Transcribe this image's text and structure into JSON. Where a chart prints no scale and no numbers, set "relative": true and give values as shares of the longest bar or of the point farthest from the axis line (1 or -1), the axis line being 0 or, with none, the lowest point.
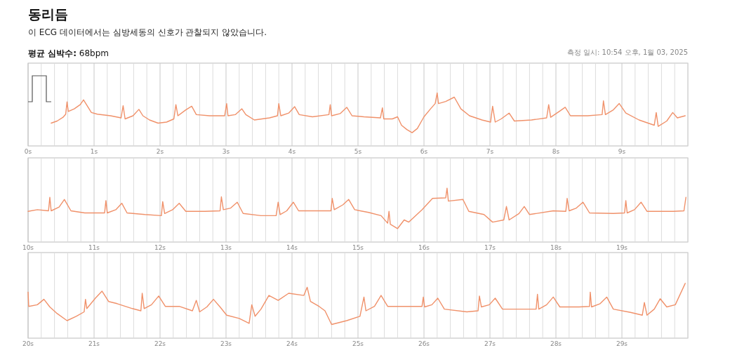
{
  "chart_data": [
    {
      "type": "line",
      "title": "동리듬",
      "subtitle": "이 ECG 데이터에서는 심방세동의 신호가 관찰되지 않았습니다.",
      "annotations": [
        "평균 심박수: 68bpm",
        "측정 일시: 10:54 오후, 1월 03, 2025"
      ],
      "relative": true,
      "grid": "x",
      "xlim": [
        0,
        10
      ],
      "xticks": [
        {
          "value": 0,
          "label": "0s"
        },
        {
          "value": 0.2,
          "label": null
        },
        {
          "value": 0.4,
          "label": null
        },
        {
          "value": 0.6,
          "label": null
        },
        {
          "value": 0.8,
          "label": null
        },
        {
          "value": 1,
          "label": "1s"
        },
        {
          "value": 1.2,
          "label": null
        },
        {
          "value": 1.4,
          "label": null
        },
        {
          "value": 1.6,
          "label": null
        },
        {
          "value": 1.8,
          "label": null
        },
        {
          "value": 2,
          "label": "2s"
        },
        {
          "value": 2.2,
          "label": null
        },
        {
          "value": 2.4,
          "label": null
        },
        {
          "value": 2.6,
          "label": null
        },
        {
          "value": 2.8,
          "label": null
        },
        {
          "value": 3,
          "label": "3s"
        },
        {
          "value": 3.2,
          "label": null
        },
        {
          "value": 3.4,
          "label": null
        },
        {
          "value": 3.6,
          "label": null
        },
        {
          "value": 3.8,
          "label": null
        },
        {
          "value": 4,
          "label": "4s"
        },
        {
          "value": 4.2,
          "label": null
        },
        {
          "value": 4.4,
          "label": null
        },
        {
          "value": 4.6,
          "label": null
        },
        {
          "value": 4.8,
          "label": null
        },
        {
          "value": 5,
          "label": "5s"
        },
        {
          "value": 5.2,
          "label": null
        },
        {
          "value": 5.4,
          "label": null
        },
        {
          "value": 5.6,
          "label": null
        },
        {
          "value": 5.8,
          "label": null
        },
        {
          "value": 6,
          "label": "6s"
        },
        {
          "value": 6.2,
          "label": null
        },
        {
          "value": 6.4,
          "label": null
        },
        {
          "value": 6.6,
          "label": null
        },
        {
          "value": 6.8,
          "label": null
        },
        {
          "value": 7,
          "label": "7s"
        },
        {
          "value": 7.2,
          "label": null
        },
        {
          "value": 7.4,
          "label": null
        },
        {
          "value": 7.6,
          "label": null
        },
        {
          "value": 7.8,
          "label": null
        },
        {
          "value": 8,
          "label": "8s"
        },
        {
          "value": 8.2,
          "label": null
        },
        {
          "value": 8.4,
          "label": null
        },
        {
          "value": 8.6,
          "label": null
        },
        {
          "value": 8.8,
          "label": null
        },
        {
          "value": 9,
          "label": "9s"
        },
        {
          "value": 9.2,
          "label": null
        },
        {
          "value": 9.4,
          "label": null
        },
        {
          "value": 9.6,
          "label": null
        },
        {
          "value": 9.8,
          "label": null
        },
        {
          "value": 10,
          "label": null
        }
      ],
      "x": [
        0.35,
        0.44,
        0.53,
        0.57,
        0.59,
        0.61,
        0.7,
        0.79,
        0.84,
        0.87,
        0.96,
        1.05,
        1.25,
        1.41,
        1.44,
        1.47,
        1.59,
        1.68,
        1.74,
        1.84,
        1.97,
        2.1,
        2.21,
        2.24,
        2.27,
        2.39,
        2.48,
        2.55,
        2.75,
        2.98,
        3.01,
        3.03,
        3.14,
        3.24,
        3.3,
        3.43,
        3.66,
        3.78,
        3.8,
        3.83,
        3.95,
        4.04,
        4.11,
        4.31,
        4.56,
        4.58,
        4.6,
        4.73,
        4.83,
        4.91,
        5.09,
        5.34,
        5.37,
        5.39,
        5.52,
        5.6,
        5.66,
        5.74,
        5.82,
        5.9,
        6.0,
        6.1,
        6.17,
        6.2,
        6.22,
        6.33,
        6.46,
        6.56,
        6.69,
        6.88,
        7.01,
        7.04,
        7.08,
        7.17,
        7.29,
        7.37,
        7.63,
        7.86,
        7.89,
        7.92,
        8.05,
        8.14,
        8.22,
        8.48,
        8.7,
        8.72,
        8.75,
        8.87,
        8.96,
        9.06,
        9.26,
        9.49,
        9.52,
        9.55,
        9.68,
        9.77,
        9.84,
        9.96
      ],
      "series": [
        {
          "color": "#f0916a",
          "values": [
            0.43,
            0.47,
            0.54,
            0.6,
            0.83,
            0.65,
            0.7,
            0.78,
            0.87,
            0.81,
            0.63,
            0.6,
            0.57,
            0.53,
            0.76,
            0.51,
            0.57,
            0.69,
            0.57,
            0.49,
            0.43,
            0.45,
            0.51,
            0.78,
            0.57,
            0.68,
            0.75,
            0.59,
            0.57,
            0.57,
            0.8,
            0.57,
            0.59,
            0.7,
            0.59,
            0.49,
            0.53,
            0.57,
            0.8,
            0.57,
            0.62,
            0.74,
            0.59,
            0.55,
            0.59,
            0.78,
            0.57,
            0.61,
            0.73,
            0.57,
            0.55,
            0.53,
            0.72,
            0.51,
            0.51,
            0.55,
            0.39,
            0.31,
            0.25,
            0.33,
            0.55,
            0.7,
            0.8,
            1,
            0.8,
            0.84,
            0.92,
            0.7,
            0.57,
            0.49,
            0.45,
            0.75,
            0.45,
            0.51,
            0.62,
            0.47,
            0.49,
            0.53,
            0.78,
            0.54,
            0.65,
            0.73,
            0.57,
            0.57,
            0.59,
            0.85,
            0.59,
            0.68,
            0.8,
            0.62,
            0.49,
            0.39,
            0.63,
            0.37,
            0.47,
            0.63,
            0.53,
            0.57
          ]
        }
      ]
    },
    {
      "type": "line",
      "relative": true,
      "grid": "x",
      "xlim": [
        10,
        20
      ],
      "xticks": [
        {
          "value": 10,
          "label": "10s"
        },
        {
          "value": 10.2,
          "label": null
        },
        {
          "value": 10.4,
          "label": null
        },
        {
          "value": 10.6,
          "label": null
        },
        {
          "value": 10.8,
          "label": null
        },
        {
          "value": 11,
          "label": "11s"
        },
        {
          "value": 11.2,
          "label": null
        },
        {
          "value": 11.4,
          "label": null
        },
        {
          "value": 11.6,
          "label": null
        },
        {
          "value": 11.8,
          "label": null
        },
        {
          "value": 12,
          "label": "12s"
        },
        {
          "value": 12.2,
          "label": null
        },
        {
          "value": 12.4,
          "label": null
        },
        {
          "value": 12.6,
          "label": null
        },
        {
          "value": 12.8,
          "label": null
        },
        {
          "value": 13,
          "label": "13s"
        },
        {
          "value": 13.2,
          "label": null
        },
        {
          "value": 13.4,
          "label": null
        },
        {
          "value": 13.6,
          "label": null
        },
        {
          "value": 13.8,
          "label": null
        },
        {
          "value": 14,
          "label": "14s"
        },
        {
          "value": 14.2,
          "label": null
        },
        {
          "value": 14.4,
          "label": null
        },
        {
          "value": 14.6,
          "label": null
        },
        {
          "value": 14.8,
          "label": null
        },
        {
          "value": 15,
          "label": "15s"
        },
        {
          "value": 15.2,
          "label": null
        },
        {
          "value": 15.4,
          "label": null
        },
        {
          "value": 15.6,
          "label": null
        },
        {
          "value": 15.8,
          "label": null
        },
        {
          "value": 16,
          "label": "16s"
        },
        {
          "value": 16.2,
          "label": null
        },
        {
          "value": 16.4,
          "label": null
        },
        {
          "value": 16.6,
          "label": null
        },
        {
          "value": 16.8,
          "label": null
        },
        {
          "value": 17,
          "label": "17s"
        },
        {
          "value": 17.2,
          "label": null
        },
        {
          "value": 17.4,
          "label": null
        },
        {
          "value": 17.6,
          "label": null
        },
        {
          "value": 17.8,
          "label": null
        },
        {
          "value": 18,
          "label": "18s"
        },
        {
          "value": 18.2,
          "label": null
        },
        {
          "value": 18.4,
          "label": null
        },
        {
          "value": 18.6,
          "label": null
        },
        {
          "value": 18.8,
          "label": null
        },
        {
          "value": 19,
          "label": "19s"
        },
        {
          "value": 19.2,
          "label": null
        },
        {
          "value": 19.4,
          "label": null
        },
        {
          "value": 19.6,
          "label": null
        },
        {
          "value": 19.8,
          "label": null
        },
        {
          "value": 20,
          "label": null
        }
      ],
      "x": [
        10.0,
        10.14,
        10.31,
        10.33,
        10.35,
        10.47,
        10.55,
        10.65,
        10.86,
        11.16,
        11.18,
        11.2,
        11.33,
        11.42,
        11.5,
        11.77,
        12.02,
        12.04,
        12.07,
        12.19,
        12.29,
        12.39,
        12.68,
        12.91,
        12.93,
        12.96,
        13.07,
        13.17,
        13.26,
        13.53,
        13.76,
        13.79,
        13.82,
        13.92,
        14.02,
        14.1,
        14.44,
        14.59,
        14.61,
        14.64,
        14.77,
        14.86,
        14.95,
        15.16,
        15.35,
        15.45,
        15.47,
        15.49,
        15.6,
        15.7,
        15.77,
        15.97,
        16.13,
        16.33,
        16.35,
        16.37,
        16.59,
        16.68,
        16.91,
        17.04,
        17.21,
        17.25,
        17.29,
        17.44,
        17.52,
        17.6,
        17.96,
        18.15,
        18.17,
        18.2,
        18.31,
        18.41,
        18.51,
        18.87,
        19.04,
        19.06,
        19.08,
        19.19,
        19.29,
        19.38,
        19.78,
        19.94,
        19.97
      ],
      "series": [
        {
          "color": "#f0916a",
          "values": [
            0.57,
            0.6,
            0.58,
            0.83,
            0.58,
            0.65,
            0.79,
            0.58,
            0.54,
            0.54,
            0.77,
            0.54,
            0.6,
            0.72,
            0.54,
            0.51,
            0.49,
            0.75,
            0.53,
            0.6,
            0.72,
            0.57,
            0.57,
            0.58,
            0.84,
            0.6,
            0.63,
            0.74,
            0.53,
            0.49,
            0.49,
            0.74,
            0.51,
            0.58,
            0.74,
            0.58,
            0.58,
            0.58,
            0.81,
            0.6,
            0.69,
            0.79,
            0.6,
            0.55,
            0.49,
            0.35,
            0.57,
            0.33,
            0.25,
            0.41,
            0.37,
            0.6,
            0.81,
            0.82,
            1,
            0.76,
            0.79,
            0.57,
            0.51,
            0.37,
            0.41,
            0.66,
            0.41,
            0.53,
            0.66,
            0.51,
            0.58,
            0.57,
            0.81,
            0.58,
            0.63,
            0.74,
            0.54,
            0.53,
            0.54,
            0.77,
            0.54,
            0.6,
            0.74,
            0.57,
            0.57,
            0.58,
            0.83
          ]
        }
      ]
    },
    {
      "type": "line",
      "relative": true,
      "grid": "x",
      "xlim": [
        20,
        30
      ],
      "xticks": [
        {
          "value": 20,
          "label": "20s"
        },
        {
          "value": 20.2,
          "label": null
        },
        {
          "value": 20.4,
          "label": null
        },
        {
          "value": 20.6,
          "label": null
        },
        {
          "value": 20.8,
          "label": null
        },
        {
          "value": 21,
          "label": "21s"
        },
        {
          "value": 21.2,
          "label": null
        },
        {
          "value": 21.4,
          "label": null
        },
        {
          "value": 21.6,
          "label": null
        },
        {
          "value": 21.8,
          "label": null
        },
        {
          "value": 22,
          "label": "22s"
        },
        {
          "value": 22.2,
          "label": null
        },
        {
          "value": 22.4,
          "label": null
        },
        {
          "value": 22.6,
          "label": null
        },
        {
          "value": 22.8,
          "label": null
        },
        {
          "value": 23,
          "label": "23s"
        },
        {
          "value": 23.2,
          "label": null
        },
        {
          "value": 23.4,
          "label": null
        },
        {
          "value": 23.6,
          "label": null
        },
        {
          "value": 23.8,
          "label": null
        },
        {
          "value": 24,
          "label": "24s"
        },
        {
          "value": 24.2,
          "label": null
        },
        {
          "value": 24.4,
          "label": null
        },
        {
          "value": 24.6,
          "label": null
        },
        {
          "value": 24.8,
          "label": null
        },
        {
          "value": 25,
          "label": "25s"
        },
        {
          "value": 25.2,
          "label": null
        },
        {
          "value": 25.4,
          "label": null
        },
        {
          "value": 25.6,
          "label": null
        },
        {
          "value": 25.8,
          "label": null
        },
        {
          "value": 26,
          "label": "26s"
        },
        {
          "value": 26.2,
          "label": null
        },
        {
          "value": 26.4,
          "label": null
        },
        {
          "value": 26.6,
          "label": null
        },
        {
          "value": 26.8,
          "label": null
        },
        {
          "value": 27,
          "label": "27s"
        },
        {
          "value": 27.2,
          "label": null
        },
        {
          "value": 27.4,
          "label": null
        },
        {
          "value": 27.6,
          "label": null
        },
        {
          "value": 27.8,
          "label": null
        },
        {
          "value": 28,
          "label": "28s"
        },
        {
          "value": 28.2,
          "label": null
        },
        {
          "value": 28.4,
          "label": null
        },
        {
          "value": 28.6,
          "label": null
        },
        {
          "value": 28.8,
          "label": null
        },
        {
          "value": 29,
          "label": "29s"
        },
        {
          "value": 29.2,
          "label": null
        },
        {
          "value": 29.4,
          "label": null
        },
        {
          "value": 29.6,
          "label": null
        },
        {
          "value": 29.8,
          "label": null
        },
        {
          "value": 30,
          "label": null
        }
      ],
      "x": [
        20.0,
        20.01,
        20.14,
        20.24,
        20.33,
        20.44,
        20.59,
        20.73,
        20.85,
        20.87,
        20.89,
        21.02,
        21.12,
        21.22,
        21.35,
        21.58,
        21.71,
        21.73,
        21.76,
        21.87,
        21.98,
        22.08,
        22.29,
        22.49,
        22.55,
        22.6,
        22.71,
        22.81,
        22.91,
        23.01,
        23.2,
        23.35,
        23.39,
        23.44,
        23.53,
        23.65,
        23.79,
        23.95,
        24.18,
        24.23,
        24.28,
        24.41,
        24.5,
        24.6,
        24.83,
        25.03,
        25.09,
        25.12,
        25.25,
        25.35,
        25.45,
        25.97,
        25.99,
        26.01,
        26.12,
        26.21,
        26.31,
        26.65,
        26.82,
        26.84,
        26.87,
        26.99,
        27.08,
        27.19,
        27.7,
        27.72,
        27.74,
        27.86,
        27.96,
        28.06,
        28.35,
        28.51,
        28.52,
        28.54,
        28.67,
        28.77,
        28.87,
        29.13,
        29.31,
        29.34,
        29.38,
        29.49,
        29.58,
        29.68,
        29.81,
        29.96
      ],
      "series": [
        {
          "color": "#f0916a",
          "values": [
            0.84,
            0.58,
            0.61,
            0.71,
            0.57,
            0.45,
            0.32,
            0.4,
            0.48,
            0.71,
            0.54,
            0.73,
            0.86,
            0.67,
            0.63,
            0.54,
            0.5,
            0.82,
            0.54,
            0.61,
            0.77,
            0.58,
            0.58,
            0.5,
            0.69,
            0.48,
            0.57,
            0.71,
            0.57,
            0.42,
            0.36,
            0.27,
            0.61,
            0.4,
            0.53,
            0.78,
            0.69,
            0.82,
            0.78,
            0.93,
            0.67,
            0.58,
            0.5,
            0.25,
            0.32,
            0.4,
            0.75,
            0.5,
            0.58,
            0.78,
            0.58,
            0.58,
            0.75,
            0.57,
            0.61,
            0.73,
            0.53,
            0.48,
            0.5,
            0.77,
            0.57,
            0.61,
            0.73,
            0.53,
            0.53,
            0.8,
            0.53,
            0.61,
            0.75,
            0.57,
            0.57,
            0.58,
            0.84,
            0.57,
            0.63,
            0.75,
            0.53,
            0.47,
            0.42,
            0.65,
            0.42,
            0.53,
            0.72,
            0.57,
            0.61,
            1
          ]
        }
      ]
    }
  ]
}
